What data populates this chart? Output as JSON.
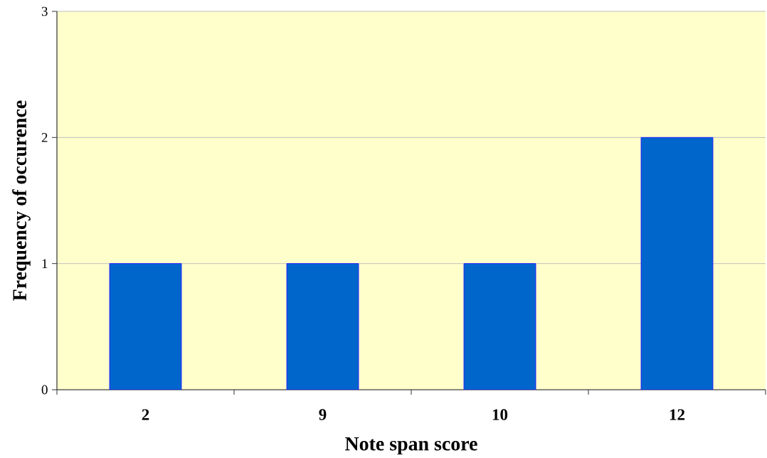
{
  "chart_data": {
    "type": "bar",
    "xlabel": "Note span score",
    "ylabel": "Frequency of occurence",
    "categories": [
      "2",
      "9",
      "10",
      "12"
    ],
    "values": [
      1,
      1,
      1,
      2
    ],
    "color": "#0066cc",
    "ylim": [
      0,
      3
    ],
    "yticks": [
      0,
      1,
      2,
      3
    ],
    "grid": "y"
  }
}
